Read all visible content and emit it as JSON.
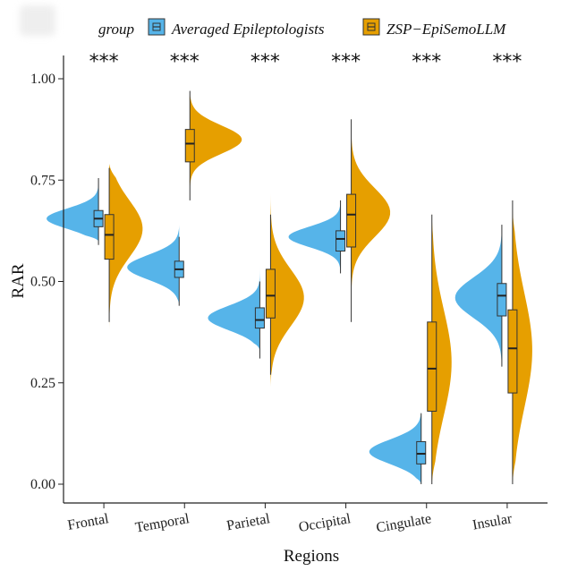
{
  "chart_data": {
    "type": "split-violin-box",
    "xlabel": "Regions",
    "ylabel": "RAR",
    "ylim": [
      0,
      1.08
    ],
    "yticks": [
      "0.00",
      "0.25",
      "0.50",
      "0.75",
      "1.00"
    ],
    "ytick_values": [
      0,
      0.25,
      0.5,
      0.75,
      1.0
    ],
    "categories": [
      "Frontal",
      "Temporal",
      "Parietal",
      "Occipital",
      "Cingulate",
      "Insular"
    ],
    "significance": [
      "***",
      "***",
      "***",
      "***",
      "***",
      "***"
    ],
    "legend": {
      "title": "group",
      "position": "top",
      "entries": [
        {
          "name": "Averaged Epileptologists",
          "color": "#56B4E9"
        },
        {
          "name": "ZSP−EpiSemoLLM",
          "color": "#E69F00"
        }
      ]
    },
    "series": [
      {
        "name": "Averaged Epileptologists",
        "color": "#56B4E9",
        "violins": [
          {
            "range": [
              0.6,
              0.76
            ],
            "peak": 0.655,
            "spread": 0.025
          },
          {
            "range": [
              0.44,
              0.64
            ],
            "peak": 0.535,
            "spread": 0.03
          },
          {
            "range": [
              0.33,
              0.54
            ],
            "peak": 0.41,
            "spread": 0.03
          },
          {
            "range": [
              0.52,
              0.71
            ],
            "peak": 0.61,
            "spread": 0.025
          },
          {
            "range": [
              0.0,
              0.18
            ],
            "peak": 0.08,
            "spread": 0.03
          },
          {
            "range": [
              0.28,
              0.64
            ],
            "peak": 0.46,
            "spread": 0.05
          }
        ],
        "boxes": [
          {
            "min": 0.59,
            "q1": 0.635,
            "median": 0.655,
            "q3": 0.675,
            "max": 0.755
          },
          {
            "min": 0.44,
            "q1": 0.51,
            "median": 0.53,
            "q3": 0.55,
            "max": 0.61
          },
          {
            "min": 0.31,
            "q1": 0.385,
            "median": 0.405,
            "q3": 0.435,
            "max": 0.5
          },
          {
            "min": 0.52,
            "q1": 0.575,
            "median": 0.605,
            "q3": 0.625,
            "max": 0.7
          },
          {
            "min": 0.0,
            "q1": 0.05,
            "median": 0.075,
            "q3": 0.105,
            "max": 0.175
          },
          {
            "min": 0.29,
            "q1": 0.415,
            "median": 0.465,
            "q3": 0.495,
            "max": 0.64
          }
        ]
      },
      {
        "name": "ZSP−EpiSemoLLM",
        "color": "#E69F00",
        "violins": [
          {
            "range": [
              0.38,
              0.79
            ],
            "peak": 0.63,
            "spread": 0.07
          },
          {
            "range": [
              0.7,
              0.97
            ],
            "peak": 0.85,
            "spread": 0.035
          },
          {
            "range": [
              0.24,
              0.72
            ],
            "peak": 0.46,
            "spread": 0.07
          },
          {
            "range": [
              0.4,
              0.93
            ],
            "peak": 0.67,
            "spread": 0.06
          },
          {
            "range": [
              0.0,
              0.67
            ],
            "peak": 0.3,
            "spread": 0.13
          },
          {
            "range": [
              0.0,
              0.68
            ],
            "peak": 0.33,
            "spread": 0.14
          }
        ],
        "boxes": [
          {
            "min": 0.4,
            "q1": 0.555,
            "median": 0.615,
            "q3": 0.665,
            "max": 0.78
          },
          {
            "min": 0.7,
            "q1": 0.795,
            "median": 0.84,
            "q3": 0.875,
            "max": 0.97
          },
          {
            "min": 0.27,
            "q1": 0.41,
            "median": 0.465,
            "q3": 0.53,
            "max": 0.665
          },
          {
            "min": 0.4,
            "q1": 0.585,
            "median": 0.665,
            "q3": 0.715,
            "max": 0.9
          },
          {
            "min": 0.0,
            "q1": 0.18,
            "median": 0.285,
            "q3": 0.4,
            "max": 0.665
          },
          {
            "min": 0.0,
            "q1": 0.225,
            "median": 0.335,
            "q3": 0.43,
            "max": 0.7
          }
        ]
      }
    ]
  }
}
